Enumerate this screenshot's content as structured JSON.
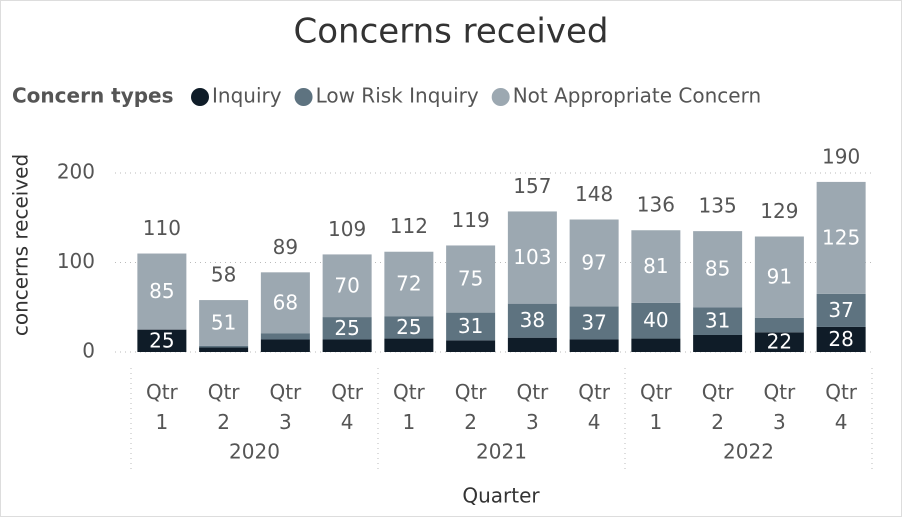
{
  "chart_data": {
    "type": "stacked_bar",
    "title": "Concerns received",
    "legend_title": "Concern types",
    "categories": [
      "Qtr 1",
      "Qtr 2",
      "Qtr 3",
      "Qtr 4",
      "Qtr 1",
      "Qtr 2",
      "Qtr 3",
      "Qtr 4",
      "Qtr 1",
      "Qtr 2",
      "Qtr 3",
      "Qtr 4"
    ],
    "groups": [
      "2020",
      "2021",
      "2022"
    ],
    "series": [
      {
        "name": "Inquiry",
        "color": "#0f1c28",
        "values": [
          25,
          5,
          14,
          14,
          15,
          13,
          16,
          14,
          15,
          19,
          22,
          28
        ]
      },
      {
        "name": "Low Risk Inquiry",
        "color": "#5e7380",
        "values": [
          0,
          2,
          7,
          25,
          25,
          31,
          38,
          37,
          40,
          31,
          16,
          37
        ]
      },
      {
        "name": "Not Appropriate Concern",
        "color": "#9ca8b1",
        "values": [
          85,
          51,
          68,
          70,
          72,
          75,
          103,
          97,
          81,
          85,
          91,
          125
        ]
      }
    ],
    "totals": [
      110,
      58,
      89,
      109,
      112,
      119,
      157,
      148,
      136,
      135,
      129,
      190
    ],
    "ylim": [
      0,
      210
    ],
    "yticks": [
      0,
      100,
      200
    ],
    "grid": true,
    "xlabel": "Quarter",
    "ylabel": "concerns received"
  }
}
